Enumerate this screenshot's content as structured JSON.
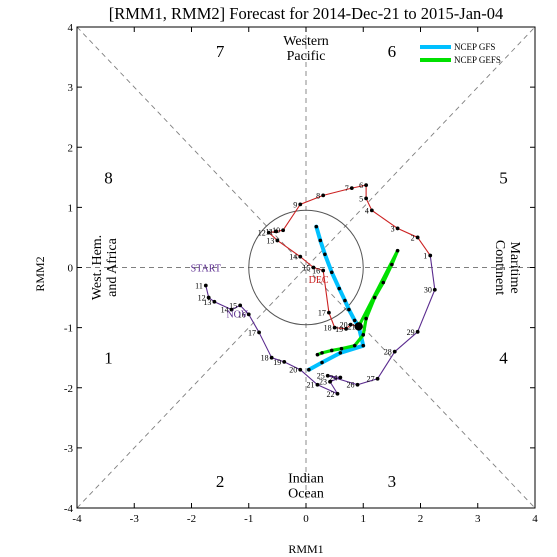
{
  "chart_data": {
    "type": "line",
    "title": "[RMM1, RMM2] Forecast for 2014-Dec-21 to 2015-Jan-04",
    "xlabel": "RMM1",
    "ylabel": "RMM2",
    "xlim": [
      -4,
      4
    ],
    "ylim": [
      -4,
      4
    ],
    "xticks": [
      "-4",
      "-3",
      "-2",
      "-1",
      "0",
      "1",
      "2",
      "3",
      "4"
    ],
    "yticks": [
      "-4",
      "-3",
      "-2",
      "-1",
      "0",
      "1",
      "2",
      "3",
      "4"
    ],
    "grid": false,
    "legend_position": "top-right",
    "colors": {
      "axes": "#000000",
      "guides": "#7f7f7f",
      "november": "#5b2c8f",
      "december": "#cc2222",
      "gfs": "#00c0ff",
      "gefs": "#00e000",
      "points": "#000000",
      "circle": "#555555"
    },
    "phase_labels": [
      {
        "text": "1",
        "x": -3.45,
        "y": -1.5
      },
      {
        "text": "2",
        "x": -1.5,
        "y": -3.55
      },
      {
        "text": "3",
        "x": 1.5,
        "y": -3.55
      },
      {
        "text": "4",
        "x": 3.45,
        "y": -1.5
      },
      {
        "text": "5",
        "x": 3.45,
        "y": 1.5
      },
      {
        "text": "6",
        "x": 1.5,
        "y": 3.6
      },
      {
        "text": "7",
        "x": -1.5,
        "y": 3.6
      },
      {
        "text": "8",
        "x": -3.45,
        "y": 1.5
      }
    ],
    "region_labels": {
      "top": [
        "Western",
        "Pacific"
      ],
      "bottom": [
        "Indian",
        "Ocean"
      ],
      "left": [
        "West. Hem.",
        "and Africa"
      ],
      "right": [
        "Maritime",
        "Continent"
      ]
    },
    "annotations": [
      {
        "text": "START",
        "x": -1.75,
        "y": -0.07,
        "color": "#5b2c8f"
      },
      {
        "text": "NOV",
        "x": -1.2,
        "y": -0.83,
        "color": "#5b2c8f"
      },
      {
        "text": "DEC",
        "x": 0.22,
        "y": -0.26,
        "color": "#cc2222"
      }
    ],
    "series": [
      {
        "month": "november",
        "points": [
          {
            "d": "11",
            "x": -1.75,
            "y": -0.3
          },
          {
            "d": "12",
            "x": -1.7,
            "y": -0.5
          },
          {
            "d": "13",
            "x": -1.6,
            "y": -0.57
          },
          {
            "d": "14",
            "x": -1.3,
            "y": -0.7
          },
          {
            "d": "15",
            "x": -1.15,
            "y": -0.63
          },
          {
            "d": "16",
            "x": -1.0,
            "y": -0.78
          },
          {
            "d": "17",
            "x": -0.82,
            "y": -1.08
          },
          {
            "d": "18",
            "x": -0.6,
            "y": -1.5
          },
          {
            "d": "19",
            "x": -0.38,
            "y": -1.57
          },
          {
            "d": "20",
            "x": -0.1,
            "y": -1.7
          },
          {
            "d": "21",
            "x": 0.2,
            "y": -1.95
          },
          {
            "d": "22",
            "x": 0.55,
            "y": -2.1
          },
          {
            "d": "23",
            "x": 0.42,
            "y": -1.9
          },
          {
            "d": "24",
            "x": 0.6,
            "y": -1.83
          },
          {
            "d": "25",
            "x": 0.38,
            "y": -1.8
          },
          {
            "d": "26",
            "x": 0.9,
            "y": -1.95
          },
          {
            "d": "27",
            "x": 1.25,
            "y": -1.85
          },
          {
            "d": "28",
            "x": 1.55,
            "y": -1.4
          },
          {
            "d": "29",
            "x": 1.95,
            "y": -1.07
          },
          {
            "d": "30",
            "x": 2.25,
            "y": -0.37
          }
        ]
      },
      {
        "month": "december",
        "points": [
          {
            "d": "1",
            "x": 2.17,
            "y": 0.2
          },
          {
            "d": "2",
            "x": 1.95,
            "y": 0.5
          },
          {
            "d": "3",
            "x": 1.6,
            "y": 0.65
          },
          {
            "d": "4",
            "x": 1.15,
            "y": 0.95
          },
          {
            "d": "5",
            "x": 1.05,
            "y": 1.15
          },
          {
            "d": "6",
            "x": 1.05,
            "y": 1.37
          },
          {
            "d": "7",
            "x": 0.8,
            "y": 1.32
          },
          {
            "d": "8",
            "x": 0.3,
            "y": 1.2
          },
          {
            "d": "9",
            "x": -0.1,
            "y": 1.05
          },
          {
            "d": "10",
            "x": -0.4,
            "y": 0.62
          },
          {
            "d": "11",
            "x": -0.52,
            "y": 0.6
          },
          {
            "d": "12",
            "x": -0.65,
            "y": 0.58
          },
          {
            "d": "13",
            "x": -0.5,
            "y": 0.45
          },
          {
            "d": "14",
            "x": -0.1,
            "y": 0.18
          },
          {
            "d": "15",
            "x": 0.13,
            "y": 0.0
          },
          {
            "d": "16",
            "x": 0.3,
            "y": -0.05
          },
          {
            "d": "17",
            "x": 0.4,
            "y": -0.75
          },
          {
            "d": "18",
            "x": 0.5,
            "y": -1.0
          },
          {
            "d": "19",
            "x": 0.7,
            "y": -1.02
          },
          {
            "d": "20",
            "x": 0.78,
            "y": -0.95
          },
          {
            "d": "21",
            "x": 0.92,
            "y": -0.98
          }
        ]
      }
    ],
    "forecasts": [
      {
        "name": "NCEP GFS",
        "color": "#00c0ff",
        "points": [
          {
            "x": 0.92,
            "y": -0.98
          },
          {
            "x": 0.85,
            "y": -0.88
          },
          {
            "x": 0.75,
            "y": -0.7
          },
          {
            "x": 0.68,
            "y": -0.55
          },
          {
            "x": 0.58,
            "y": -0.35
          },
          {
            "x": 0.45,
            "y": -0.08
          },
          {
            "x": 0.33,
            "y": 0.22
          },
          {
            "x": 0.25,
            "y": 0.45
          },
          {
            "x": 0.18,
            "y": 0.68
          },
          {
            "x": 1.0,
            "y": -1.3
          },
          {
            "x": 0.6,
            "y": -1.42
          },
          {
            "x": 0.28,
            "y": -1.58
          },
          {
            "x": 0.05,
            "y": -1.7
          }
        ],
        "segments": [
          [
            0,
            1,
            2,
            3,
            4,
            5,
            6,
            7,
            8
          ],
          [
            0,
            9,
            10,
            11,
            12
          ]
        ]
      },
      {
        "name": "NCEP GEFS",
        "color": "#00e000",
        "points": [
          {
            "x": 0.92,
            "y": -0.98
          },
          {
            "x": 1.6,
            "y": 0.28
          },
          {
            "x": 1.5,
            "y": 0.05
          },
          {
            "x": 1.35,
            "y": -0.25
          },
          {
            "x": 1.2,
            "y": -0.5
          },
          {
            "x": 1.05,
            "y": -0.85
          },
          {
            "x": 1.0,
            "y": -1.12
          },
          {
            "x": 0.85,
            "y": -1.3
          },
          {
            "x": 0.62,
            "y": -1.35
          },
          {
            "x": 0.45,
            "y": -1.38
          },
          {
            "x": 0.28,
            "y": -1.42
          },
          {
            "x": 0.2,
            "y": -1.45
          }
        ],
        "segments": [
          [
            0,
            1
          ],
          [
            1,
            2,
            3,
            4,
            5,
            6,
            7,
            8,
            9,
            10,
            11
          ]
        ]
      }
    ]
  }
}
